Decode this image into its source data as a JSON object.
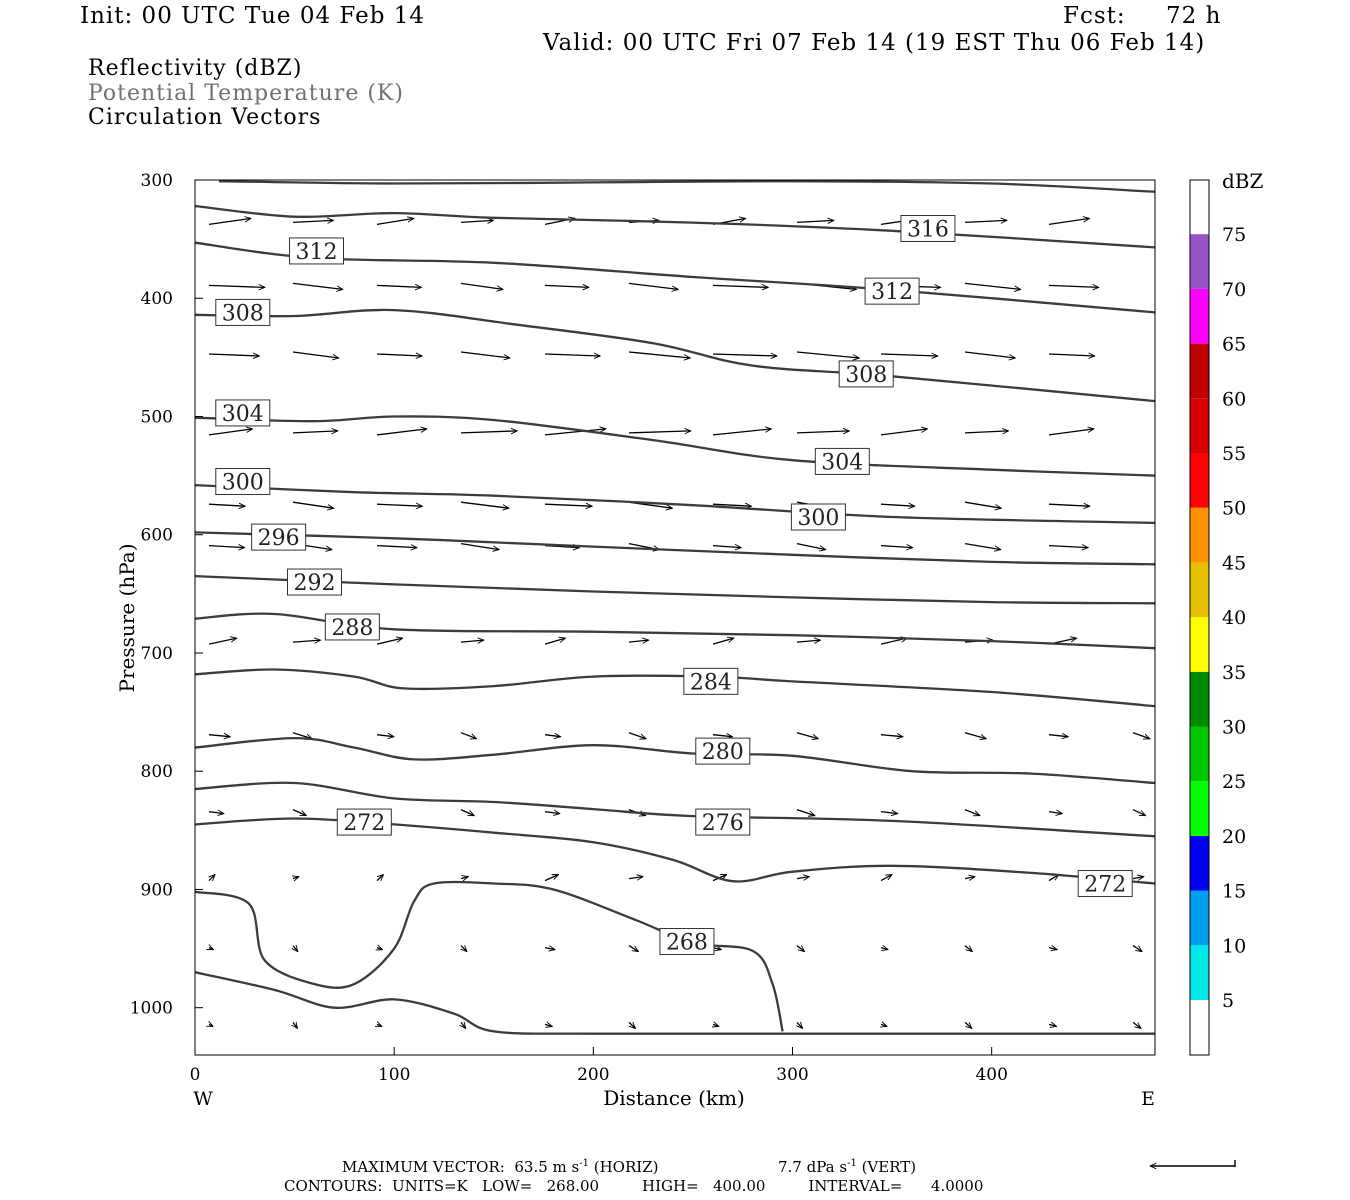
{
  "header": {
    "init": "Init: 00 UTC Tue 04 Feb 14",
    "fcst_label": "Fcst:",
    "fcst_value": "72 h",
    "valid": "Valid: 00 UTC Fri 07 Feb 14 (19 EST Thu 06 Feb 14)"
  },
  "legend": {
    "line1": "Reflectivity (dBZ)",
    "line2": "Potential Temperature (K)",
    "line3": "Circulation Vectors"
  },
  "footer": {
    "max_vector": "MAXIMUM VECTOR:  63.5 m s",
    "max_vector_exp": "-1",
    "horiz": " (HORIZ)",
    "vert_val": "7.7 dPa s",
    "vert_exp": "-1",
    "vert": " (VERT)",
    "contours": "CONTOURS:  UNITS=K   LOW=   268.00         HIGH=   400.00         INTERVAL=      4.0000"
  },
  "chart_data": {
    "type": "line",
    "xlabel": "Distance (km)",
    "ylabel": "Pressure (hPa)",
    "xlim": [
      0,
      482
    ],
    "ylim": [
      1040,
      300
    ],
    "x_ticks": [
      0,
      100,
      200,
      300,
      400
    ],
    "y_ticks": [
      300,
      400,
      500,
      600,
      700,
      800,
      900,
      1000
    ],
    "x_end_labels": {
      "left": "W",
      "right": "E"
    },
    "colorbar": {
      "unit": "dBZ",
      "levels": [
        5,
        10,
        15,
        20,
        25,
        30,
        35,
        40,
        45,
        50,
        55,
        60,
        65,
        70,
        75
      ],
      "colors": [
        "#00e8e8",
        "#009ef0",
        "#0000f0",
        "#00ff00",
        "#00c800",
        "#008a00",
        "#ffff00",
        "#e7c000",
        "#ff9000",
        "#ff0000",
        "#d80000",
        "#c00000",
        "#ff00ff",
        "#9955c8"
      ]
    },
    "series": [
      {
        "name": "",
        "points": [
          [
            12,
            301
          ],
          [
            100,
            303
          ],
          [
            200,
            302
          ],
          [
            300,
            301
          ],
          [
            400,
            303
          ],
          [
            482,
            310
          ]
        ]
      },
      {
        "name": "",
        "points": [
          [
            0,
            322
          ],
          [
            50,
            331
          ],
          [
            100,
            328
          ],
          [
            150,
            332
          ],
          [
            250,
            336
          ],
          [
            350,
            343
          ],
          [
            482,
            357
          ]
        ]
      },
      {
        "name": "",
        "points": [
          [
            0,
            353
          ],
          [
            60,
            366
          ],
          [
            150,
            370
          ],
          [
            250,
            382
          ],
          [
            350,
            393
          ],
          [
            482,
            412
          ]
        ]
      },
      {
        "name": "",
        "points": [
          [
            0,
            414
          ],
          [
            50,
            415
          ],
          [
            100,
            410
          ],
          [
            160,
            422
          ],
          [
            230,
            438
          ],
          [
            280,
            457
          ],
          [
            350,
            466
          ],
          [
            482,
            487
          ]
        ]
      },
      {
        "name": "",
        "points": [
          [
            0,
            501
          ],
          [
            60,
            504
          ],
          [
            100,
            500
          ],
          [
            150,
            503
          ],
          [
            230,
            520
          ],
          [
            300,
            537
          ],
          [
            400,
            545
          ],
          [
            482,
            550
          ]
        ]
      },
      {
        "name": "",
        "points": [
          [
            0,
            558
          ],
          [
            80,
            564
          ],
          [
            150,
            567
          ],
          [
            250,
            575
          ],
          [
            350,
            585
          ],
          [
            482,
            590
          ]
        ]
      },
      {
        "name": "",
        "points": [
          [
            0,
            598
          ],
          [
            100,
            603
          ],
          [
            200,
            610
          ],
          [
            300,
            617
          ],
          [
            400,
            623
          ],
          [
            482,
            625
          ]
        ]
      },
      {
        "name": "",
        "points": [
          [
            0,
            635
          ],
          [
            100,
            642
          ],
          [
            200,
            648
          ],
          [
            300,
            653
          ],
          [
            400,
            657
          ],
          [
            482,
            658
          ]
        ]
      },
      {
        "name": "",
        "points": [
          [
            0,
            671
          ],
          [
            40,
            667
          ],
          [
            100,
            680
          ],
          [
            200,
            682
          ],
          [
            300,
            685
          ],
          [
            400,
            690
          ],
          [
            482,
            696
          ]
        ]
      },
      {
        "name": "",
        "points": [
          [
            0,
            718
          ],
          [
            40,
            714
          ],
          [
            80,
            720
          ],
          [
            105,
            730
          ],
          [
            150,
            728
          ],
          [
            200,
            720
          ],
          [
            260,
            720
          ],
          [
            300,
            724
          ],
          [
            400,
            733
          ],
          [
            482,
            745
          ]
        ]
      },
      {
        "name": "",
        "points": [
          [
            0,
            780
          ],
          [
            50,
            772
          ],
          [
            80,
            780
          ],
          [
            110,
            790
          ],
          [
            150,
            786
          ],
          [
            200,
            778
          ],
          [
            250,
            785
          ],
          [
            300,
            787
          ],
          [
            360,
            800
          ],
          [
            420,
            802
          ],
          [
            482,
            810
          ]
        ]
      },
      {
        "name": "",
        "points": [
          [
            0,
            815
          ],
          [
            50,
            810
          ],
          [
            100,
            823
          ],
          [
            150,
            826
          ],
          [
            200,
            832
          ],
          [
            250,
            838
          ],
          [
            350,
            842
          ],
          [
            482,
            855
          ]
        ]
      },
      {
        "name": "",
        "points": [
          [
            0,
            845
          ],
          [
            50,
            840
          ],
          [
            100,
            845
          ],
          [
            150,
            852
          ],
          [
            200,
            860
          ],
          [
            240,
            875
          ],
          [
            270,
            893
          ],
          [
            300,
            885
          ],
          [
            350,
            880
          ],
          [
            420,
            886
          ],
          [
            482,
            895
          ]
        ]
      },
      {
        "name": "",
        "points": [
          [
            0,
            902
          ],
          [
            27,
            912
          ],
          [
            35,
            960
          ],
          [
            60,
            980
          ],
          [
            80,
            980
          ],
          [
            100,
            950
          ],
          [
            110,
            910
          ],
          [
            120,
            895
          ],
          [
            150,
            895
          ],
          [
            180,
            900
          ],
          [
            220,
            925
          ],
          [
            250,
            945
          ],
          [
            280,
            952
          ],
          [
            290,
            980
          ],
          [
            295,
            1020
          ]
        ]
      },
      {
        "name": "",
        "points": [
          [
            0,
            970
          ],
          [
            40,
            985
          ],
          [
            70,
            1000
          ],
          [
            100,
            993
          ],
          [
            130,
            1005
          ],
          [
            150,
            1020
          ],
          [
            200,
            1022
          ],
          [
            300,
            1022
          ],
          [
            482,
            1022
          ]
        ]
      }
    ],
    "annotations": [
      {
        "text": "316",
        "x": 368,
        "y": 341
      },
      {
        "text": "312",
        "x": 61,
        "y": 360
      },
      {
        "text": "312",
        "x": 350,
        "y": 394
      },
      {
        "text": "308",
        "x": 24,
        "y": 412
      },
      {
        "text": "308",
        "x": 337,
        "y": 464
      },
      {
        "text": "304",
        "x": 24,
        "y": 497
      },
      {
        "text": "304",
        "x": 325,
        "y": 538
      },
      {
        "text": "300",
        "x": 24,
        "y": 555
      },
      {
        "text": "300",
        "x": 313,
        "y": 585
      },
      {
        "text": "296",
        "x": 42,
        "y": 602
      },
      {
        "text": "292",
        "x": 60,
        "y": 640
      },
      {
        "text": "288",
        "x": 79,
        "y": 678
      },
      {
        "text": "284",
        "x": 259,
        "y": 724
      },
      {
        "text": "280",
        "x": 265,
        "y": 783
      },
      {
        "text": "276",
        "x": 265,
        "y": 843
      },
      {
        "text": "272",
        "x": 85,
        "y": 843
      },
      {
        "text": "272",
        "x": 457,
        "y": 895
      },
      {
        "text": "268",
        "x": 247,
        "y": 944
      }
    ]
  }
}
